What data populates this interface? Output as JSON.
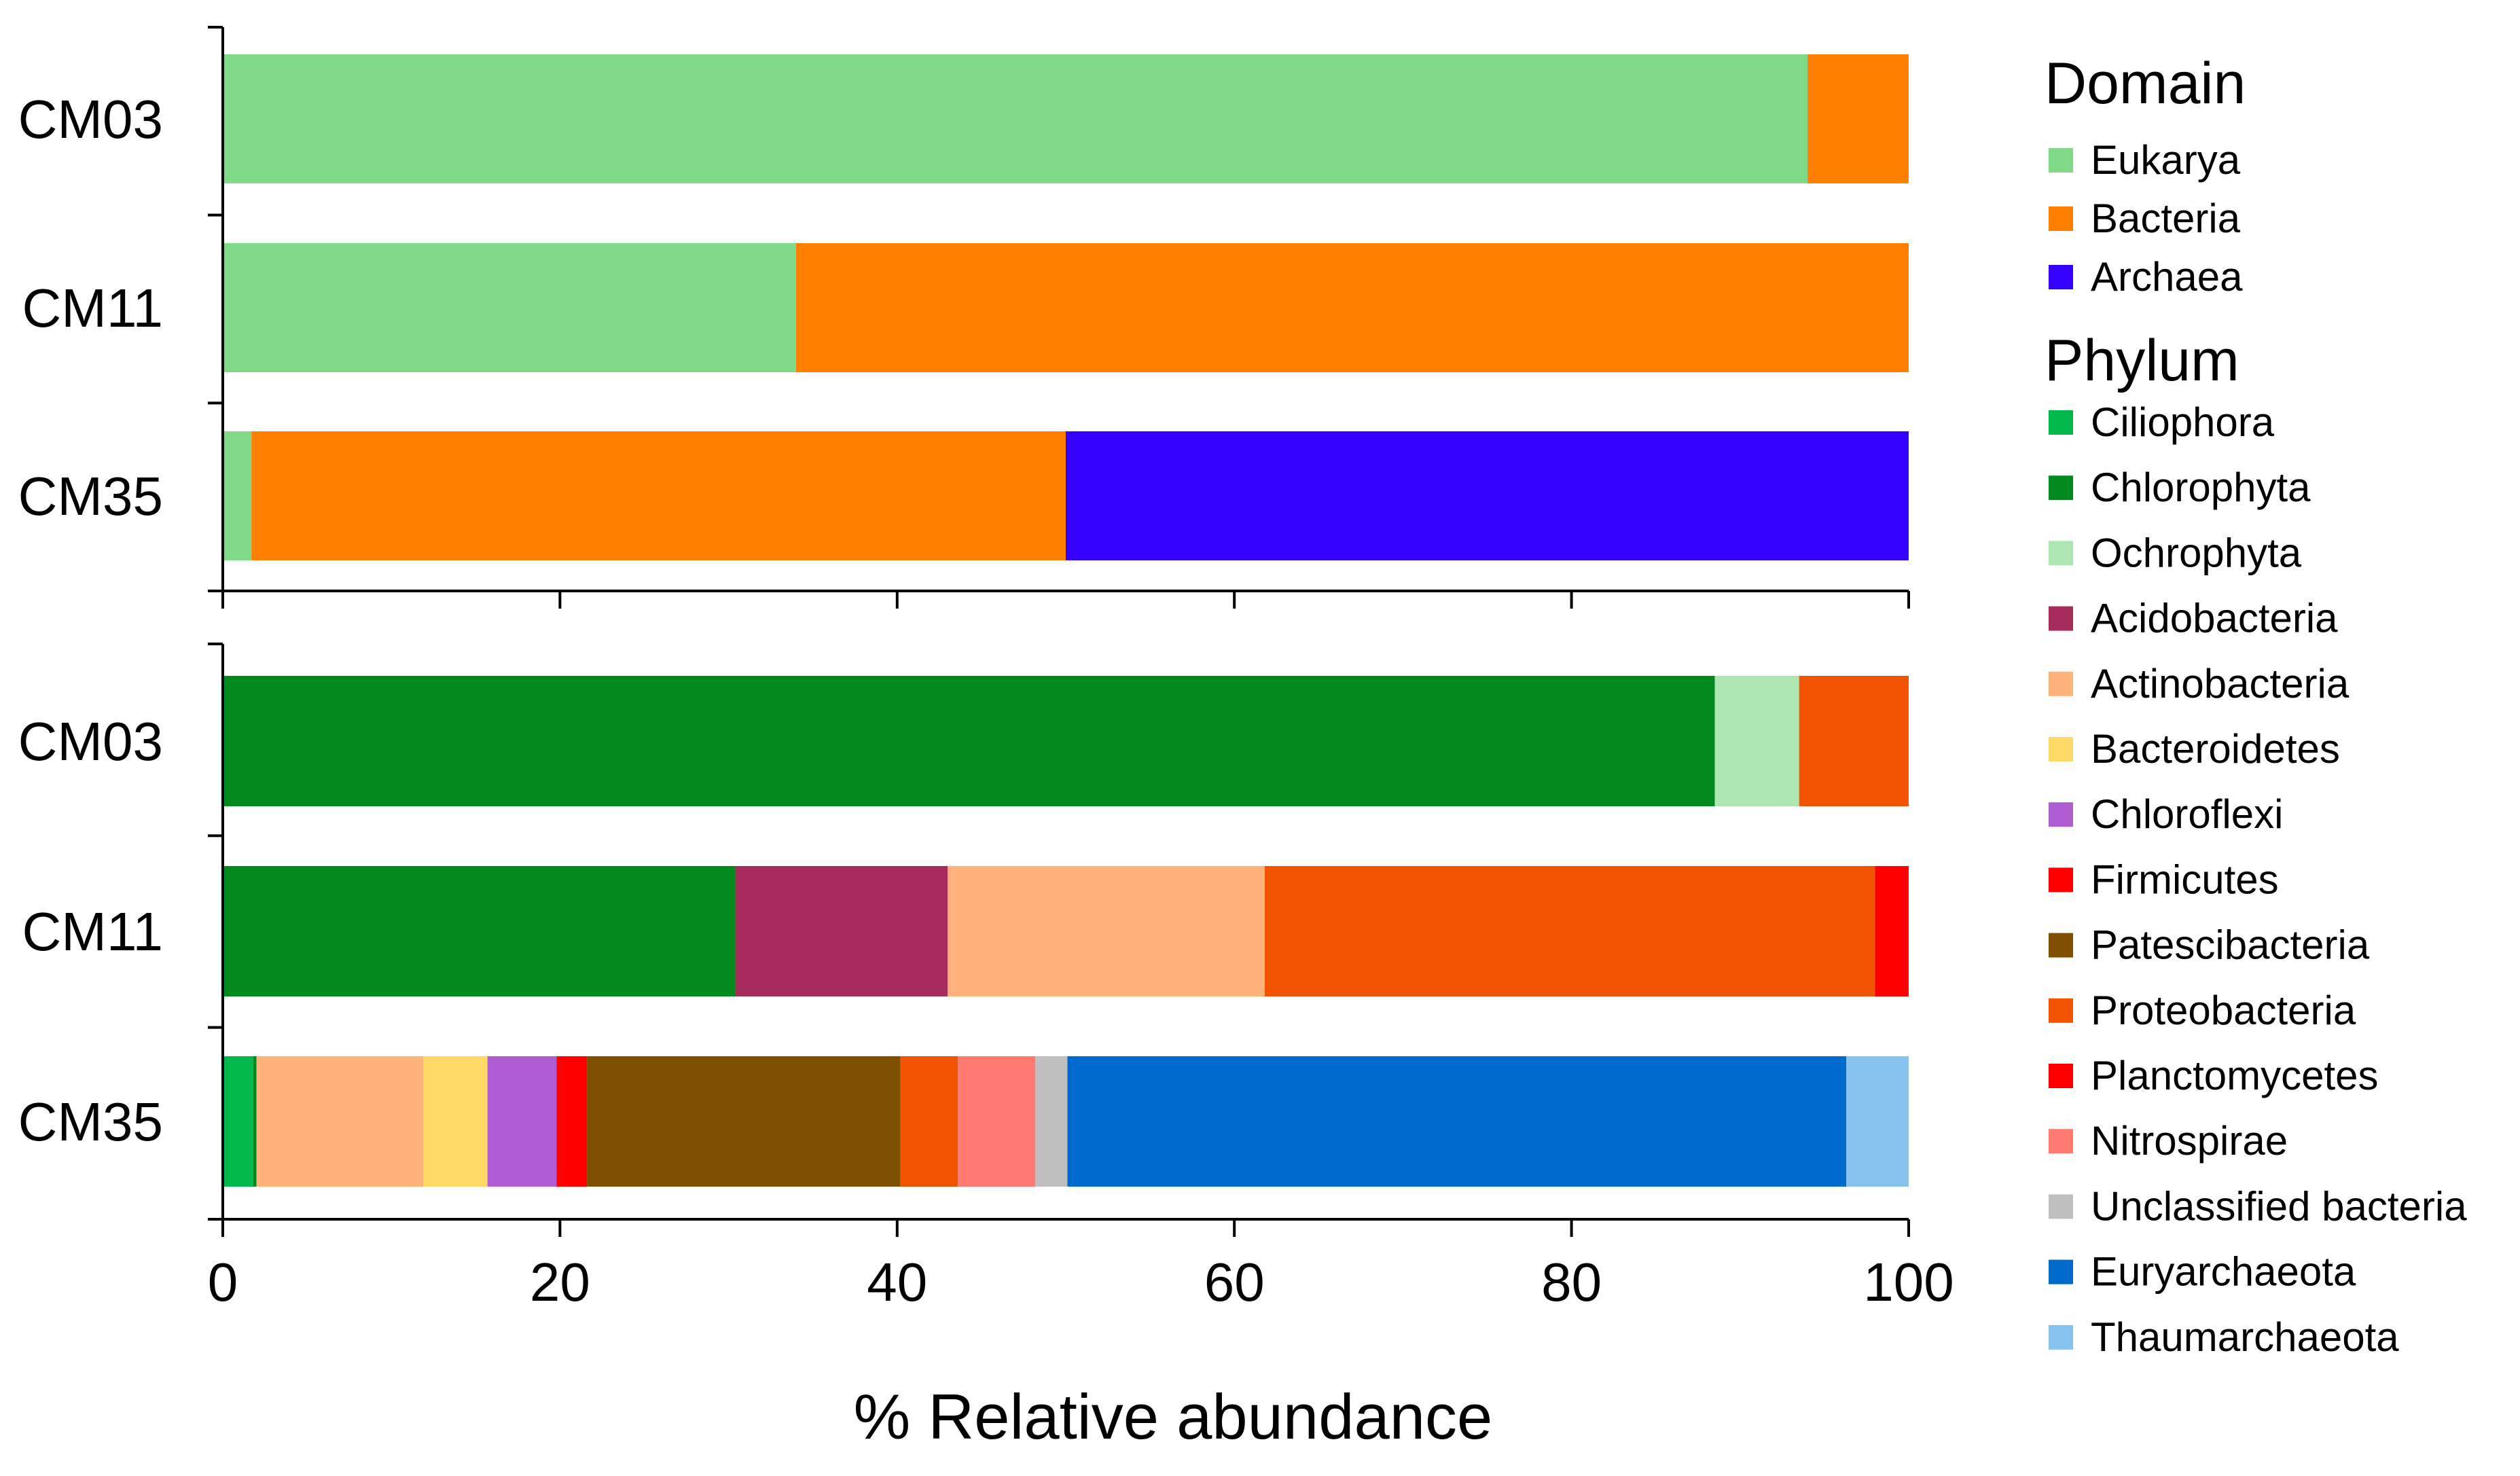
{
  "chart_data": [
    {
      "type": "bar",
      "orientation": "horizontal",
      "stacked": true,
      "panel": "Domain",
      "categories": [
        "CM03",
        "CM11",
        "CM35"
      ],
      "series": [
        {
          "name": "Eukarya",
          "color": "#80D987",
          "values": [
            94.0,
            34.0,
            1.7
          ]
        },
        {
          "name": "Bacteria",
          "color": "#FF7F00",
          "values": [
            6.0,
            66.0,
            48.3
          ]
        },
        {
          "name": "Archaea",
          "color": "#3600FF",
          "values": [
            0.0,
            0.0,
            50.0
          ]
        }
      ],
      "xlim": [
        0,
        100
      ],
      "ticks": [
        0,
        20,
        40,
        60,
        80,
        100
      ],
      "grid": false
    },
    {
      "type": "bar",
      "orientation": "horizontal",
      "stacked": true,
      "panel": "Phylum",
      "categories": [
        "CM03",
        "CM11",
        "CM35"
      ],
      "series": [
        {
          "name": "Ciliophora",
          "color": "#00B84A",
          "values": [
            0,
            0,
            1.8
          ]
        },
        {
          "name": "Chlorophyta",
          "color": "#008A1E",
          "values": [
            88.5,
            30.4,
            0.2
          ]
        },
        {
          "name": "Ochrophyta",
          "color": "#AEE6B1",
          "values": [
            5.0,
            0,
            0
          ]
        },
        {
          "name": "Acidobacteria",
          "color": "#A52B5A",
          "values": [
            0,
            12.6,
            0
          ]
        },
        {
          "name": "Actinobacteria",
          "color": "#FFB27A",
          "values": [
            0,
            18.8,
            9.9
          ]
        },
        {
          "name": "Bacteroidetes",
          "color": "#FFD966",
          "values": [
            0,
            0,
            3.8
          ]
        },
        {
          "name": "Chloroflexi",
          "color": "#B05CD3",
          "values": [
            0,
            0,
            4.1
          ]
        },
        {
          "name": "Firmicutes",
          "color": "#FF0000",
          "values": [
            0,
            0,
            1.8
          ]
        },
        {
          "name": "Patescibacteria",
          "color": "#7F4F00",
          "values": [
            0,
            0,
            18.6
          ]
        },
        {
          "name": "Proteobacteria",
          "color": "#F25402",
          "values": [
            6.5,
            36.2,
            3.4
          ]
        },
        {
          "name": "Planctomycetes",
          "color": "#FF0000",
          "values": [
            0,
            2.0,
            0
          ]
        },
        {
          "name": "Nitrospirae",
          "color": "#FF7A70",
          "values": [
            0,
            0,
            4.6
          ]
        },
        {
          "name": "Unclassified bacteria",
          "color": "#BFBFBF",
          "values": [
            0,
            0,
            1.9
          ]
        },
        {
          "name": "Euryarchaeota",
          "color": "#0069CC",
          "values": [
            0,
            0,
            46.2
          ]
        },
        {
          "name": "Thaumarchaeota",
          "color": "#85C2ED",
          "values": [
            0,
            0,
            3.7
          ]
        }
      ],
      "xlim": [
        0,
        100
      ],
      "ticks": [
        0,
        20,
        40,
        60,
        80,
        100
      ],
      "grid": false
    }
  ],
  "xlabel": "% Relative abundance",
  "legend": {
    "placement": "right",
    "groups": [
      {
        "title": "Domain",
        "items": [
          {
            "label": "Eukarya",
            "color": "#80D987"
          },
          {
            "label": "Bacteria",
            "color": "#FF7F00"
          },
          {
            "label": "Archaea",
            "color": "#3600FF"
          }
        ]
      },
      {
        "title": "Phylum",
        "items": [
          {
            "label": "Ciliophora",
            "color": "#00B84A"
          },
          {
            "label": "Chlorophyta",
            "color": "#008A1E"
          },
          {
            "label": "Ochrophyta",
            "color": "#AEE6B1"
          },
          {
            "label": "Acidobacteria",
            "color": "#A52B5A"
          },
          {
            "label": "Actinobacteria",
            "color": "#FFB27A"
          },
          {
            "label": "Bacteroidetes",
            "color": "#FFD966"
          },
          {
            "label": "Chloroflexi",
            "color": "#B05CD3"
          },
          {
            "label": "Firmicutes",
            "color": "#FF0000"
          },
          {
            "label": "Patescibacteria",
            "color": "#7F4F00"
          },
          {
            "label": "Proteobacteria",
            "color": "#F25402"
          },
          {
            "label": "Planctomycetes",
            "color": "#FF0000"
          },
          {
            "label": "Nitrospirae",
            "color": "#FF7A70"
          },
          {
            "label": "Unclassified bacteria",
            "color": "#BFBFBF"
          },
          {
            "label": "Euryarchaeota",
            "color": "#0069CC"
          },
          {
            "label": "Thaumarchaeota",
            "color": "#85C2ED"
          }
        ]
      }
    ]
  }
}
